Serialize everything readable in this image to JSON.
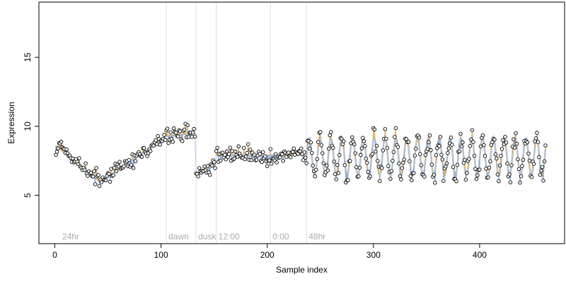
{
  "chart_data": {
    "type": "scatter",
    "title": "",
    "xlabel": "Sample index",
    "ylabel": "Expression",
    "xlim": [
      -15,
      480
    ],
    "ylim": [
      1.5,
      19
    ],
    "x_ticks": [
      0,
      100,
      200,
      300,
      400
    ],
    "y_ticks": [
      5,
      10,
      15
    ],
    "grid": false,
    "legend": "none",
    "n_samples": 462,
    "colors": {
      "fitted_line": "#bdbdbd",
      "observed_line": "#a8c4e6",
      "residual_positive": "#f2a93b",
      "residual_negative": "#7fa6d9",
      "point_fill": "#ffffff",
      "point_stroke": "#000000",
      "phase_line": "#dddddd",
      "phase_label": "#aaaaaa"
    },
    "phase_markers": [
      {
        "x": 5,
        "label": "24hr",
        "line": false
      },
      {
        "x": 105,
        "label": "dawn",
        "line": true
      },
      {
        "x": 133,
        "label": "dusk",
        "line": true
      },
      {
        "x": 152,
        "label": "12:00",
        "line": true
      },
      {
        "x": 203,
        "label": "0:00",
        "line": true
      },
      {
        "x": 237,
        "label": "48hr",
        "line": true
      }
    ],
    "segments": [
      {
        "name": "",
        "start": 1,
        "end": 42,
        "kind": "linear",
        "from": 8.6,
        "to": 6.0,
        "noise": 0.55
      },
      {
        "name": "",
        "start": 43,
        "end": 104,
        "kind": "linear",
        "from": 6.0,
        "to": 9.2,
        "noise": 0.5
      },
      {
        "name": "",
        "start": 105,
        "end": 132,
        "kind": "linear",
        "from": 9.3,
        "to": 9.5,
        "noise": 0.7
      },
      {
        "name": "",
        "start": 133,
        "end": 151,
        "kind": "linear",
        "from": 6.4,
        "to": 7.2,
        "noise": 0.35
      },
      {
        "name": "",
        "start": 152,
        "end": 236,
        "kind": "linear",
        "from": 7.9,
        "to": 7.9,
        "noise": 0.55
      },
      {
        "name": "",
        "start": 237,
        "end": 462,
        "kind": "sine",
        "center": 7.8,
        "amplitude": 1.4,
        "period": 10.2,
        "noise": 0.6
      }
    ]
  }
}
